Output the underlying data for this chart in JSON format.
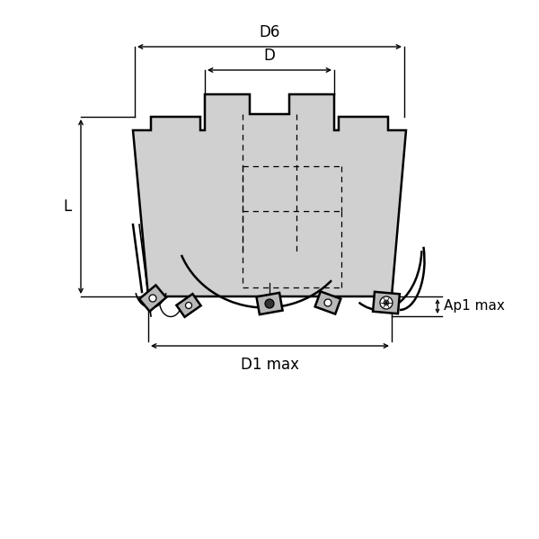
{
  "bg_color": "#ffffff",
  "body_fill": "#d0d0d0",
  "line_color": "#000000",
  "figsize": [
    6.0,
    6.0
  ],
  "dpi": 100,
  "labels": {
    "D6": "D6",
    "D": "D",
    "L": "L",
    "D1max": "D1 max",
    "Ap1max": "Ap1 max"
  },
  "font_size": 12
}
